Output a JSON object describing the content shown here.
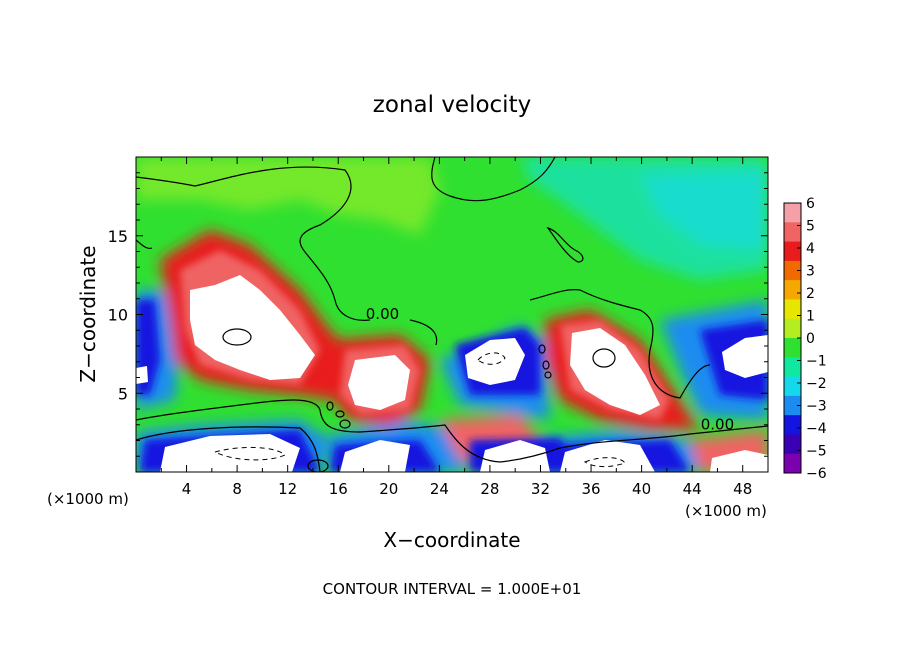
{
  "chart_data": {
    "type": "heatmap",
    "title": "zonal velocity",
    "xlabel": "X−coordinate",
    "ylabel": "Z−coordinate",
    "x_unit_left": "(×1000 m)",
    "x_unit_right": "(×1000 m)",
    "footer": "CONTOUR INTERVAL = 1.000E+01",
    "xlim": [
      0,
      50
    ],
    "ylim": [
      0,
      20
    ],
    "x_ticks": [
      "4",
      "8",
      "12",
      "16",
      "20",
      "24",
      "28",
      "32",
      "36",
      "40",
      "44",
      "48"
    ],
    "x_tick_values": [
      4,
      8,
      12,
      16,
      20,
      24,
      28,
      32,
      36,
      40,
      44,
      48
    ],
    "y_ticks": [
      "5",
      "10",
      "15"
    ],
    "y_tick_values": [
      5,
      10,
      15
    ],
    "contour_labels": [
      {
        "text": "0.00",
        "x": 19.5,
        "y": 9.7
      },
      {
        "text": "0.00",
        "x": 46.0,
        "y": 2.7
      }
    ],
    "colorbar": {
      "labels": [
        "6",
        "5",
        "4",
        "3",
        "2",
        "1",
        "0",
        "−1",
        "−2",
        "−3",
        "−4",
        "−5",
        "−6"
      ],
      "colors": [
        "#f4a0a8",
        "#f06464",
        "#e81c1c",
        "#f06a00",
        "#f5a800",
        "#e6e600",
        "#b4ee20",
        "#30e030",
        "#10e8a0",
        "#14d8ec",
        "#1c8cf0",
        "#1414e0",
        "#3a00b4",
        "#7a00b0"
      ]
    },
    "features": [
      {
        "kind": "positive-core",
        "x": 9.5,
        "y": 10.2,
        "rx": 5.0,
        "ry": 3.0
      },
      {
        "kind": "positive-core",
        "x": 18.2,
        "y": 6.8,
        "rx": 2.4,
        "ry": 1.8
      },
      {
        "kind": "positive-core",
        "x": 37.2,
        "y": 6.6,
        "rx": 3.4,
        "ry": 2.6
      },
      {
        "kind": "negative-core",
        "x": 29.2,
        "y": 7.0,
        "rx": 2.4,
        "ry": 1.6
      },
      {
        "kind": "negative-core",
        "x": 48.5,
        "y": 7.6,
        "rx": 2.0,
        "ry": 1.3
      },
      {
        "kind": "negative-core",
        "x": 8.5,
        "y": 1.4,
        "rx": 6.0,
        "ry": 1.5
      },
      {
        "kind": "negative-core",
        "x": 19.5,
        "y": 1.1,
        "rx": 3.0,
        "ry": 1.0
      },
      {
        "kind": "negative-core",
        "x": 28.5,
        "y": 1.1,
        "rx": 3.8,
        "ry": 1.1
      },
      {
        "kind": "negative-core",
        "x": 37.5,
        "y": 1.0,
        "rx": 4.0,
        "ry": 1.0
      }
    ]
  }
}
